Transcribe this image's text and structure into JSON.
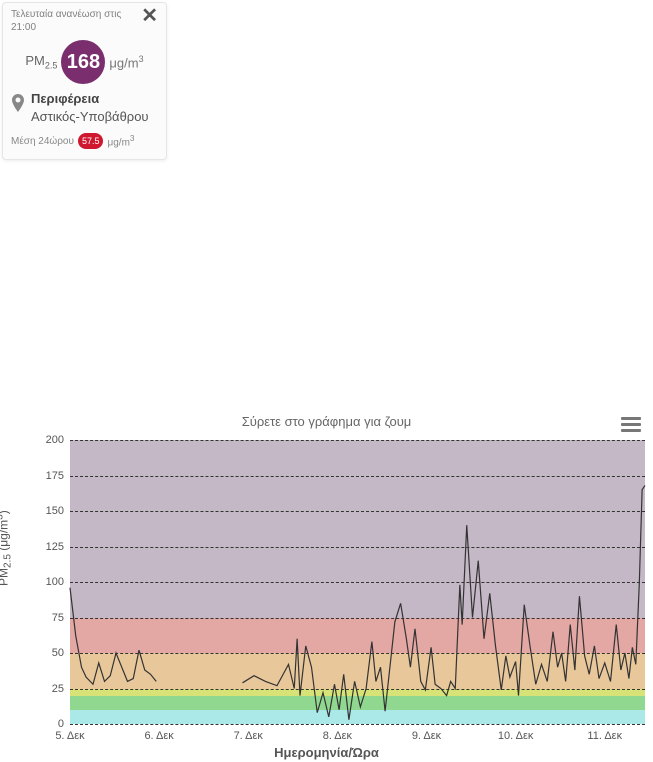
{
  "card": {
    "refresh_label": "Τελευταία ανανέωση στις 21:00",
    "pollutant_label_html": "PM",
    "pollutant_sub": "2.5",
    "big_value": "168",
    "big_value_color": "#7b2e6e",
    "unit_base": "μg/m",
    "unit_sup": "3",
    "location_title": "Περιφέρεια",
    "location_sub": "Αστικός-Υποβάθρου",
    "avg_label": "Μέση 24ώρου",
    "avg_value": "57.5",
    "avg_color": "#cf1830",
    "avg_unit_base": "μg/m",
    "avg_unit_sup": "3"
  },
  "chart": {
    "title": "Σύρετε στο γράφημα για ζουμ",
    "ylabel_html": "PM<tspan baseline-shift='sub' font-size='9'>2.5</tspan> (μg/m<tspan baseline-shift='super' font-size='9'>3</tspan>)",
    "ylabel_plain_a": "PM",
    "ylabel_sub": "2.5",
    "ylabel_mid": " (μg/m",
    "ylabel_sup": "3",
    "ylabel_end": ")",
    "xlabel": "Ημερομηνία/Ώρα",
    "ylim": [
      0,
      200
    ],
    "yticks": [
      0,
      25,
      50,
      75,
      100,
      125,
      150,
      175,
      200
    ],
    "xticks": [
      {
        "t": 0.0,
        "label": "5. Δεκ"
      },
      {
        "t": 0.155,
        "label": "6. Δεκ"
      },
      {
        "t": 0.31,
        "label": "7. Δεκ"
      },
      {
        "t": 0.465,
        "label": "8. Δεκ"
      },
      {
        "t": 0.62,
        "label": "9. Δεκ"
      },
      {
        "t": 0.775,
        "label": "10. Δεκ"
      },
      {
        "t": 0.93,
        "label": "11. Δεκ"
      }
    ],
    "x_range": [
      0,
      1
    ],
    "bands": [
      {
        "from": 0,
        "to": 10,
        "color": "#8fe0e0"
      },
      {
        "from": 10,
        "to": 20,
        "color": "#6bc96b"
      },
      {
        "from": 20,
        "to": 25,
        "color": "#c9d94a"
      },
      {
        "from": 25,
        "to": 50,
        "color": "#e0b47a"
      },
      {
        "from": 50,
        "to": 75,
        "color": "#d98a86"
      },
      {
        "from": 75,
        "to": 800,
        "color": "#b09fb3"
      }
    ],
    "band_opacity": 0.75,
    "grid_color": "#333333",
    "line_color": "#333333",
    "line_width": 1.2,
    "background": "#ffffff",
    "series": [
      [
        0.0,
        96
      ],
      [
        0.01,
        62
      ],
      [
        0.02,
        40
      ],
      [
        0.028,
        33
      ],
      [
        0.04,
        28
      ],
      [
        0.05,
        43
      ],
      [
        0.06,
        30
      ],
      [
        0.07,
        34
      ],
      [
        0.08,
        50
      ],
      [
        0.09,
        40
      ],
      [
        0.1,
        30
      ],
      [
        0.11,
        32
      ],
      [
        0.12,
        52
      ],
      [
        0.13,
        38
      ],
      [
        0.14,
        35
      ],
      [
        0.15,
        30
      ],
      [
        0.3,
        29
      ],
      [
        0.32,
        34
      ],
      [
        0.34,
        30
      ],
      [
        0.36,
        27
      ],
      [
        0.38,
        42
      ],
      [
        0.39,
        25
      ],
      [
        0.395,
        60
      ],
      [
        0.4,
        20
      ],
      [
        0.41,
        55
      ],
      [
        0.42,
        40
      ],
      [
        0.43,
        8
      ],
      [
        0.44,
        22
      ],
      [
        0.45,
        5
      ],
      [
        0.46,
        28
      ],
      [
        0.468,
        10
      ],
      [
        0.476,
        35
      ],
      [
        0.485,
        3
      ],
      [
        0.495,
        30
      ],
      [
        0.505,
        12
      ],
      [
        0.515,
        25
      ],
      [
        0.525,
        58
      ],
      [
        0.532,
        30
      ],
      [
        0.54,
        40
      ],
      [
        0.548,
        9
      ],
      [
        0.555,
        35
      ],
      [
        0.565,
        72
      ],
      [
        0.575,
        85
      ],
      [
        0.585,
        60
      ],
      [
        0.592,
        40
      ],
      [
        0.6,
        67
      ],
      [
        0.61,
        30
      ],
      [
        0.618,
        24
      ],
      [
        0.628,
        54
      ],
      [
        0.635,
        28
      ],
      [
        0.645,
        25
      ],
      [
        0.655,
        20
      ],
      [
        0.662,
        30
      ],
      [
        0.67,
        25
      ],
      [
        0.678,
        98
      ],
      [
        0.682,
        70
      ],
      [
        0.69,
        140
      ],
      [
        0.7,
        75
      ],
      [
        0.71,
        115
      ],
      [
        0.72,
        60
      ],
      [
        0.73,
        92
      ],
      [
        0.74,
        55
      ],
      [
        0.75,
        24
      ],
      [
        0.758,
        48
      ],
      [
        0.765,
        33
      ],
      [
        0.775,
        44
      ],
      [
        0.78,
        20
      ],
      [
        0.79,
        84
      ],
      [
        0.8,
        55
      ],
      [
        0.81,
        28
      ],
      [
        0.82,
        42
      ],
      [
        0.83,
        30
      ],
      [
        0.84,
        65
      ],
      [
        0.848,
        40
      ],
      [
        0.855,
        50
      ],
      [
        0.862,
        30
      ],
      [
        0.87,
        70
      ],
      [
        0.878,
        38
      ],
      [
        0.886,
        90
      ],
      [
        0.895,
        48
      ],
      [
        0.903,
        35
      ],
      [
        0.912,
        55
      ],
      [
        0.92,
        32
      ],
      [
        0.93,
        43
      ],
      [
        0.94,
        30
      ],
      [
        0.95,
        70
      ],
      [
        0.958,
        38
      ],
      [
        0.965,
        50
      ],
      [
        0.972,
        32
      ],
      [
        0.978,
        54
      ],
      [
        0.984,
        42
      ],
      [
        0.99,
        98
      ],
      [
        0.995,
        165
      ],
      [
        1.0,
        168
      ]
    ],
    "series_break_at": 16
  }
}
